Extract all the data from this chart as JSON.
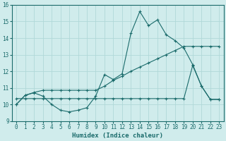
{
  "xlabel": "Humidex (Indice chaleur)",
  "bg_color": "#d0ecec",
  "grid_color": "#b0d8d8",
  "line_color": "#1a6b6b",
  "xlim": [
    -0.5,
    23.5
  ],
  "ylim": [
    9,
    16
  ],
  "yticks": [
    9,
    10,
    11,
    12,
    13,
    14,
    15,
    16
  ],
  "xticks": [
    0,
    1,
    2,
    3,
    4,
    5,
    6,
    7,
    8,
    9,
    10,
    11,
    12,
    13,
    14,
    15,
    16,
    17,
    18,
    19,
    20,
    21,
    22,
    23
  ],
  "series1_x": [
    0,
    1,
    2,
    3,
    4,
    5,
    6,
    7,
    8,
    9,
    10,
    11,
    12,
    13,
    14,
    15,
    16,
    17,
    18,
    19,
    20,
    21,
    22,
    23
  ],
  "series1_y": [
    10.0,
    10.55,
    10.7,
    10.5,
    10.0,
    9.65,
    9.55,
    9.65,
    9.8,
    10.5,
    11.8,
    11.5,
    11.85,
    14.3,
    15.6,
    14.75,
    15.1,
    14.2,
    13.85,
    13.4,
    12.4,
    11.1,
    10.3,
    10.3
  ],
  "series2_x": [
    0,
    1,
    2,
    3,
    4,
    5,
    6,
    7,
    8,
    9,
    10,
    11,
    12,
    13,
    14,
    15,
    16,
    17,
    18,
    19,
    20,
    21,
    22,
    23
  ],
  "series2_y": [
    10.0,
    10.55,
    10.72,
    10.85,
    10.85,
    10.85,
    10.85,
    10.85,
    10.85,
    10.85,
    11.1,
    11.45,
    11.7,
    12.0,
    12.25,
    12.5,
    12.75,
    13.0,
    13.25,
    13.5,
    13.5,
    13.5,
    13.5,
    13.5
  ],
  "series3_x": [
    0,
    1,
    2,
    3,
    4,
    5,
    6,
    7,
    8,
    9,
    10,
    11,
    12,
    13,
    14,
    15,
    16,
    17,
    18,
    19,
    20,
    21,
    22,
    23
  ],
  "series3_y": [
    10.35,
    10.35,
    10.35,
    10.35,
    10.35,
    10.35,
    10.35,
    10.35,
    10.35,
    10.35,
    10.35,
    10.35,
    10.35,
    10.35,
    10.35,
    10.35,
    10.35,
    10.35,
    10.35,
    10.35,
    12.35,
    11.1,
    10.3,
    10.3
  ],
  "marker": "+",
  "markersize": 3,
  "linewidth": 0.8
}
